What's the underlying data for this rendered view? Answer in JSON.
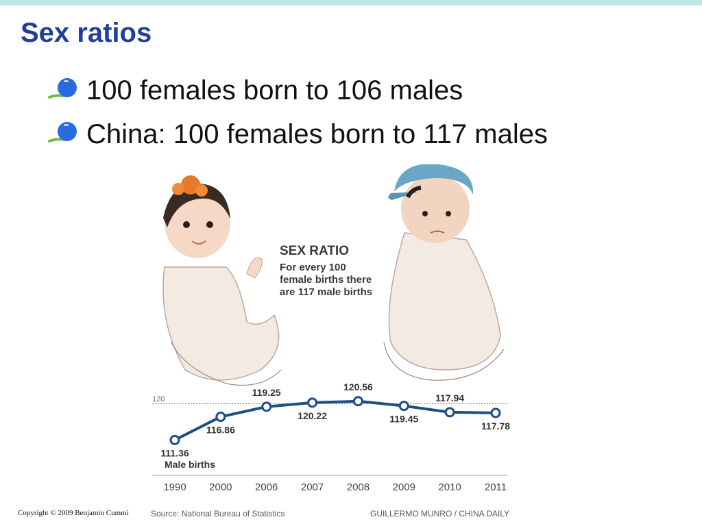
{
  "slide": {
    "title": "Sex ratios",
    "bullets": [
      {
        "text": "100 females born to 106 males"
      },
      {
        "text": "China: 100 females born to 117 males"
      }
    ],
    "copyright": "Copyright © 2009 Benjamin Cummi"
  },
  "infographic": {
    "title": "SEX RATIO",
    "subtitle_lines": [
      "For every 100",
      "female births there",
      "are 117 male births"
    ],
    "source": "Source: National Bureau of Statistics",
    "credit": "GUILLERMO MUNRO / CHINA DAILY",
    "colors": {
      "line": "#1d4e86",
      "title": "#1f3f99"
    }
  },
  "chart_data": {
    "type": "line",
    "x": [
      "1990",
      "2000",
      "2006",
      "2007",
      "2008",
      "2009",
      "2010",
      "2011"
    ],
    "series": [
      {
        "name": "Male births",
        "values": [
          111.36,
          116.86,
          119.25,
          120.22,
          120.56,
          119.45,
          117.94,
          117.78
        ]
      }
    ],
    "value_labels": [
      "111.36",
      "116.86",
      "119.25",
      "120.22",
      "120.56",
      "119.45",
      "117.94",
      "117.78"
    ],
    "reference_line": {
      "value": 120,
      "label": "120"
    },
    "ylim": [
      108.5,
      121.5
    ],
    "grid": false
  }
}
